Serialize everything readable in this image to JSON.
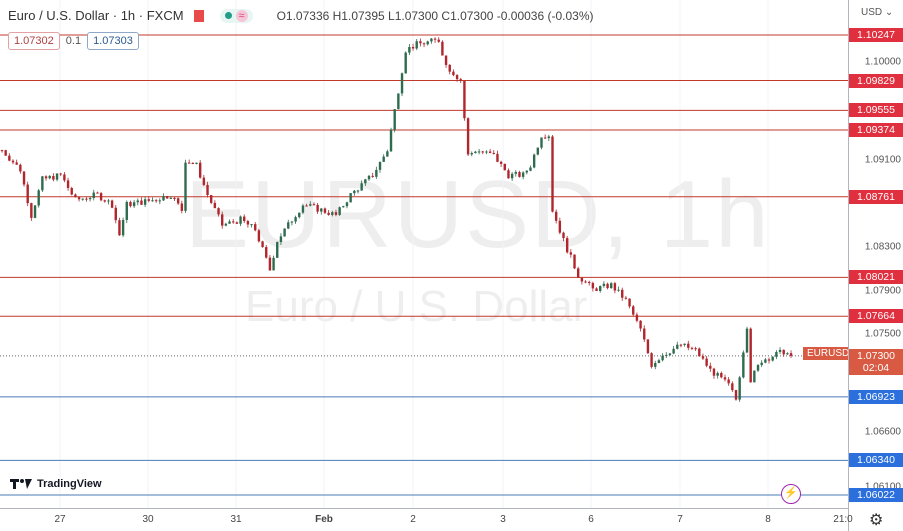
{
  "header": {
    "title": "Euro / U.S. Dollar · 1h · FXCM",
    "ohlc": "O1.07336 H1.07395 L1.07300 C1.07300 -0.00036 (-0.03%)"
  },
  "trade": {
    "sell": "1.07302",
    "spread": "0.1",
    "buy": "1.07303"
  },
  "watermark": {
    "symbol": "EURUSD, 1h",
    "name": "Euro / U.S. Dollar"
  },
  "axis": {
    "currency": "USD ⌄",
    "ticks": [
      "1.10000",
      "1.09100",
      "1.08300",
      "1.07900",
      "1.07500",
      "1.06600",
      "1.06100"
    ],
    "countdown": "02:04",
    "symbol_tag": "EURUSD"
  },
  "time_labels": [
    "27",
    "30",
    "31",
    "Feb",
    "2",
    "3",
    "6",
    "7",
    "8",
    "21:0"
  ],
  "logo": "TradingView",
  "colors": {
    "resistance": "#e0303f",
    "support": "#2a6fdb",
    "current": "#d85a42",
    "up": "#2e6b4f",
    "down": "#b0262c"
  },
  "chart_data": {
    "type": "candlestick",
    "symbol": "EURUSD",
    "interval": "1h",
    "last_price": 1.073,
    "resistance_levels": [
      1.10247,
      1.09829,
      1.09555,
      1.09374,
      1.08761,
      1.08021,
      1.07664
    ],
    "support_levels": [
      1.06923,
      1.0634,
      1.06022
    ],
    "price_range": [
      1.0597,
      1.107
    ],
    "price_path": [
      [
        0,
        1.0919
      ],
      [
        5,
        1.0901
      ],
      [
        8,
        1.0859
      ],
      [
        11,
        1.0892
      ],
      [
        16,
        1.0896
      ],
      [
        20,
        1.0873
      ],
      [
        26,
        1.0878
      ],
      [
        30,
        1.0869
      ],
      [
        32,
        1.0841
      ],
      [
        34,
        1.0869
      ],
      [
        41,
        1.0873
      ],
      [
        46,
        1.0878
      ],
      [
        49,
        1.0864
      ],
      [
        50,
        1.091
      ],
      [
        53,
        1.0905
      ],
      [
        56,
        1.0878
      ],
      [
        60,
        1.085
      ],
      [
        65,
        1.0855
      ],
      [
        69,
        1.0846
      ],
      [
        73,
        1.0809
      ],
      [
        75,
        1.0836
      ],
      [
        79,
        1.0855
      ],
      [
        82,
        1.0869
      ],
      [
        87,
        1.0864
      ],
      [
        91,
        1.0859
      ],
      [
        95,
        1.0878
      ],
      [
        101,
        1.0896
      ],
      [
        105,
        1.0919
      ],
      [
        108,
        1.0974
      ],
      [
        110,
        1.1011
      ],
      [
        113,
        1.1016
      ],
      [
        119,
        1.102
      ],
      [
        121,
        1.0997
      ],
      [
        125,
        1.0983
      ],
      [
        127,
        1.0914
      ],
      [
        129,
        1.0919
      ],
      [
        134,
        1.0914
      ],
      [
        138,
        1.0896
      ],
      [
        142,
        1.0896
      ],
      [
        144,
        1.0905
      ],
      [
        147,
        1.0933
      ],
      [
        149,
        1.0933
      ],
      [
        150,
        1.0864
      ],
      [
        153,
        1.0836
      ],
      [
        157,
        1.0804
      ],
      [
        161,
        1.0791
      ],
      [
        166,
        1.0795
      ],
      [
        170,
        1.0781
      ],
      [
        174,
        1.0754
      ],
      [
        177,
        1.0722
      ],
      [
        180,
        1.0731
      ],
      [
        185,
        1.074
      ],
      [
        189,
        1.0735
      ],
      [
        193,
        1.0717
      ],
      [
        198,
        1.0703
      ],
      [
        200,
        1.069
      ],
      [
        203,
        1.0758
      ],
      [
        204,
        1.0708
      ],
      [
        207,
        1.0726
      ],
      [
        213,
        1.0734
      ],
      [
        215,
        1.073
      ]
    ]
  }
}
